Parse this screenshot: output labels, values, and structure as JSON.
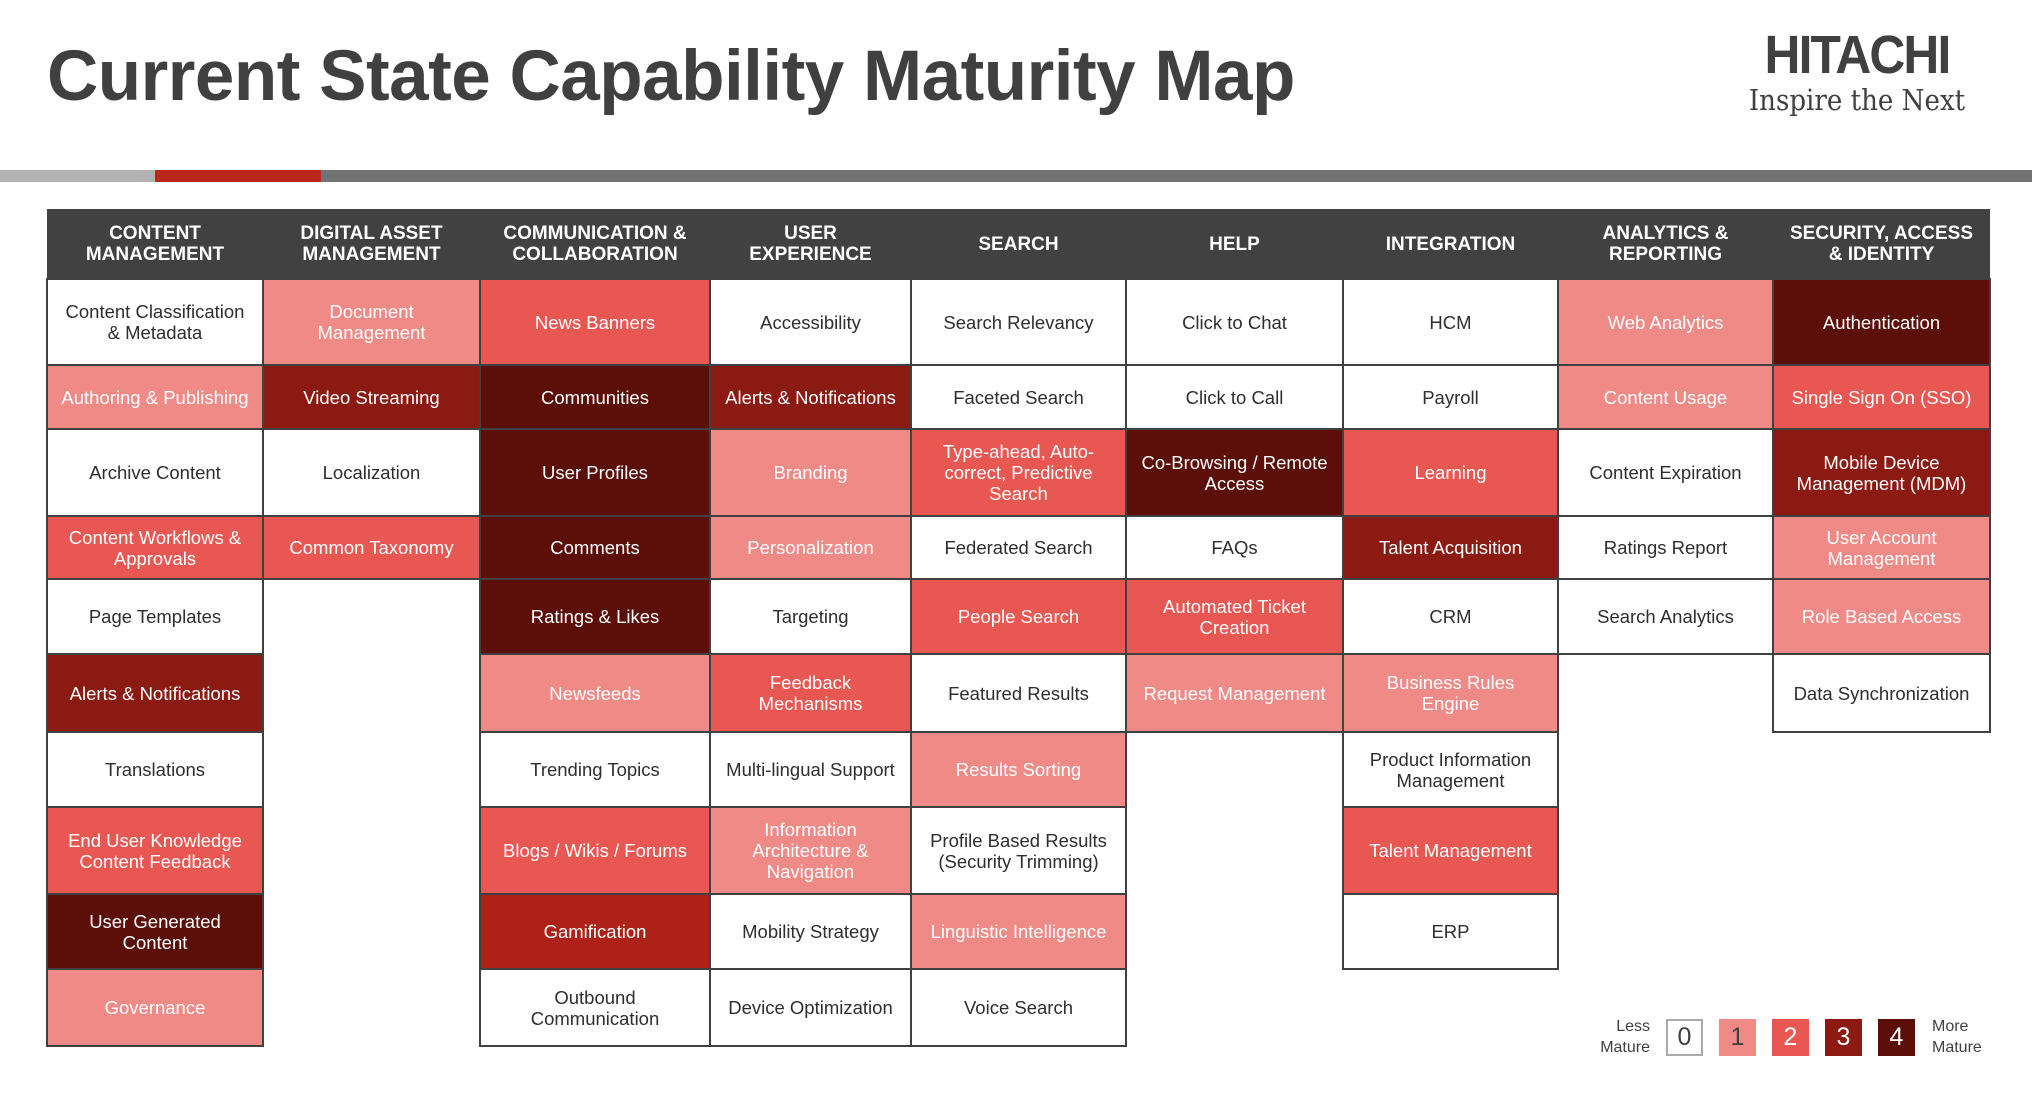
{
  "title": "Current State Capability Maturity Map",
  "logo": {
    "brand": "HITACHI",
    "tagline": "Inspire the Next"
  },
  "colors": {
    "header": "#414141",
    "level_0": "#ffffff",
    "level_1": "#f08a87",
    "level_2": "#e95752",
    "level_3": "#8b1a12",
    "level_4": "#5c0e09",
    "accent_red": "#bb271b"
  },
  "columns": [
    {
      "header": "CONTENT\nMANAGEMENT",
      "cells": [
        {
          "label": "Content Classification\n& Metadata",
          "level": 0
        },
        {
          "label": "Authoring & Publishing",
          "level": 1
        },
        {
          "label": "Archive Content",
          "level": 0
        },
        {
          "label": "Content Workflows &\nApprovals",
          "level": 2
        },
        {
          "label": "Page Templates",
          "level": 0
        },
        {
          "label": "Alerts & Notifications",
          "level": 3
        },
        {
          "label": "Translations",
          "level": 0
        },
        {
          "label": "End User Knowledge\nContent Feedback",
          "level": 2
        },
        {
          "label": "User Generated\nContent",
          "level": 4
        },
        {
          "label": "Governance",
          "level": 1
        }
      ]
    },
    {
      "header": "DIGITAL ASSET\nMANAGEMENT",
      "cells": [
        {
          "label": "Document\nManagement",
          "level": 1
        },
        {
          "label": "Video Streaming",
          "level": 3
        },
        {
          "label": "Localization",
          "level": 0
        },
        {
          "label": "Common Taxonomy",
          "level": 2
        }
      ]
    },
    {
      "header": "COMMUNICATION &\nCOLLABORATION",
      "cells": [
        {
          "label": "News Banners",
          "level": 2
        },
        {
          "label": "Communities",
          "level": 4
        },
        {
          "label": "User Profiles",
          "level": 4
        },
        {
          "label": "Comments",
          "level": 4
        },
        {
          "label": "Ratings & Likes",
          "level": 4
        },
        {
          "label": "Newsfeeds",
          "level": 1
        },
        {
          "label": "Trending Topics",
          "level": 0
        },
        {
          "label": "Blogs / Wikis / Forums",
          "level": 2
        },
        {
          "label": "Gamification",
          "level": 3,
          "color": "#ae2118"
        },
        {
          "label": "Outbound\nCommunication",
          "level": 0
        }
      ]
    },
    {
      "header": "USER\nEXPERIENCE",
      "cells": [
        {
          "label": "Accessibility",
          "level": 0
        },
        {
          "label": "Alerts & Notifications",
          "level": 3
        },
        {
          "label": "Branding",
          "level": 1
        },
        {
          "label": "Personalization",
          "level": 1
        },
        {
          "label": "Targeting",
          "level": 0
        },
        {
          "label": "Feedback\nMechanisms",
          "level": 2
        },
        {
          "label": "Multi-lingual Support",
          "level": 0
        },
        {
          "label": "Information\nArchitecture &\nNavigation",
          "level": 1
        },
        {
          "label": "Mobility Strategy",
          "level": 0
        },
        {
          "label": "Device Optimization",
          "level": 0
        }
      ]
    },
    {
      "header": "SEARCH",
      "cells": [
        {
          "label": "Search Relevancy",
          "level": 0
        },
        {
          "label": "Faceted Search",
          "level": 0
        },
        {
          "label": "Type-ahead, Auto-\ncorrect, Predictive\nSearch",
          "level": 2
        },
        {
          "label": "Federated Search",
          "level": 0
        },
        {
          "label": "People Search",
          "level": 2
        },
        {
          "label": "Featured Results",
          "level": 0
        },
        {
          "label": "Results Sorting",
          "level": 1
        },
        {
          "label": "Profile Based Results\n(Security Trimming)",
          "level": 0
        },
        {
          "label": "Linguistic Intelligence",
          "level": 1
        },
        {
          "label": "Voice Search",
          "level": 0
        }
      ]
    },
    {
      "header": "HELP",
      "cells": [
        {
          "label": "Click to Chat",
          "level": 0
        },
        {
          "label": "Click to Call",
          "level": 0
        },
        {
          "label": "Co-Browsing / Remote\nAccess",
          "level": 4
        },
        {
          "label": "FAQs",
          "level": 0
        },
        {
          "label": "Automated Ticket\nCreation",
          "level": 2
        },
        {
          "label": "Request Management",
          "level": 1
        }
      ]
    },
    {
      "header": "INTEGRATION",
      "cells": [
        {
          "label": "HCM",
          "level": 0
        },
        {
          "label": "Payroll",
          "level": 0
        },
        {
          "label": "Learning",
          "level": 2
        },
        {
          "label": "Talent Acquisition",
          "level": 3
        },
        {
          "label": "CRM",
          "level": 0
        },
        {
          "label": "Business Rules\nEngine",
          "level": 1
        },
        {
          "label": "Product Information\nManagement",
          "level": 0
        },
        {
          "label": "Talent Management",
          "level": 2
        },
        {
          "label": "ERP",
          "level": 0
        }
      ]
    },
    {
      "header": "ANALYTICS &\nREPORTING",
      "cells": [
        {
          "label": "Web Analytics",
          "level": 1
        },
        {
          "label": "Content Usage",
          "level": 1
        },
        {
          "label": "Content Expiration",
          "level": 0
        },
        {
          "label": "Ratings Report",
          "level": 0
        },
        {
          "label": "Search Analytics",
          "level": 0
        }
      ]
    },
    {
      "header": "SECURITY, ACCESS\n& IDENTITY",
      "cells": [
        {
          "label": "Authentication",
          "level": 4
        },
        {
          "label": "Single Sign On (SSO)",
          "level": 2
        },
        {
          "label": "Mobile Device\nManagement (MDM)",
          "level": 3
        },
        {
          "label": "User Account\nManagement",
          "level": 1
        },
        {
          "label": "Role Based Access",
          "level": 1
        },
        {
          "label": "Data Synchronization",
          "level": 0
        }
      ]
    }
  ],
  "legend": {
    "less_label": "Less\nMature",
    "more_label": "More\nMature",
    "levels": [
      "0",
      "1",
      "2",
      "3",
      "4"
    ]
  }
}
